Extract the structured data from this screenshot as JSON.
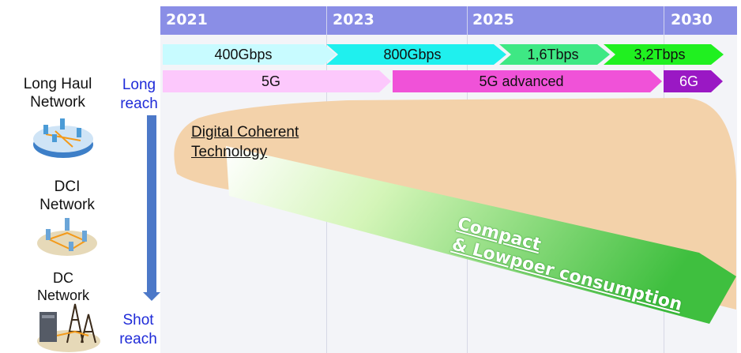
{
  "timeline": {
    "years": [
      "2021",
      "2023",
      "2025",
      "2030"
    ]
  },
  "capacity_row": [
    {
      "label": "400Gbps",
      "color": "#c8fbff"
    },
    {
      "label": "800Gbps",
      "color": "#1ff0ee"
    },
    {
      "label": "1,6Tbps",
      "color": "#3ee884"
    },
    {
      "label": "3,2Tbps",
      "color": "#20f020"
    }
  ],
  "mobile_row": [
    {
      "label": "5G",
      "color": "#fcc8fc"
    },
    {
      "label": "5G advanced",
      "color": "#f052d8"
    },
    {
      "label": "6G",
      "color": "#9a18c4"
    }
  ],
  "networks": {
    "long_haul": "Long Haul\nNetwork",
    "dci": "DCI\nNetwork",
    "dc": "DC\nNetwork"
  },
  "reach": {
    "long": "Long\nreach",
    "short": "Shot\nreach"
  },
  "technology": {
    "digital_coherent": "Digital Coherent\nTechnology",
    "compact_line1": "Compact",
    "compact_line2": "& Lowpoer consumption"
  },
  "colors": {
    "year_bar": "#8a8ee6",
    "coherent_region": "#f3d2aa",
    "green_arrow_start": "#ffffff",
    "green_arrow_end": "#3fbf3f",
    "reach_arrow": "#4c78c8"
  }
}
